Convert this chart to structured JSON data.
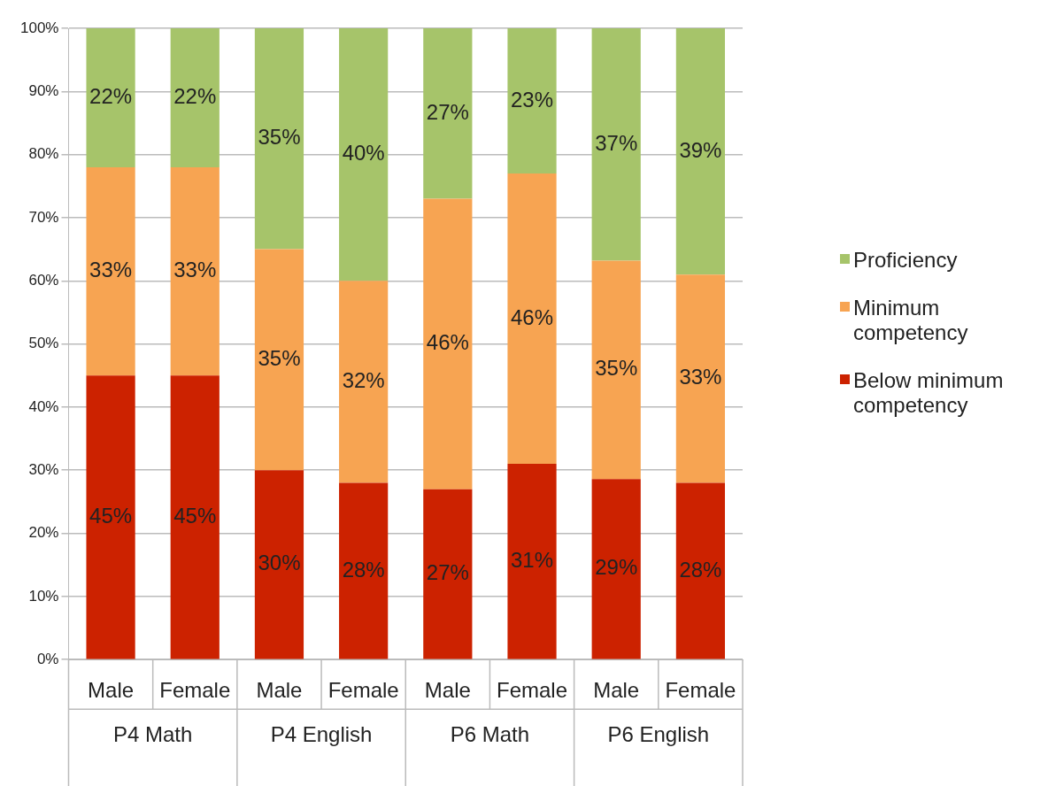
{
  "chart_data": {
    "type": "bar",
    "stacked": true,
    "categories": [
      "Male",
      "Female",
      "Male",
      "Female",
      "Male",
      "Female",
      "Male",
      "Female"
    ],
    "series": [
      {
        "name": "Below minimum competency",
        "color": "#cc2200",
        "values": [
          45,
          45,
          30,
          28,
          27,
          31,
          28.6,
          28
        ],
        "value_labels": [
          "45%",
          "45%",
          "30%",
          "28%",
          "27%",
          "31%",
          "29%",
          "28%"
        ]
      },
      {
        "name": "Minimum competency",
        "color": "#f7a452",
        "values": [
          33,
          33,
          35,
          32,
          46,
          46,
          34.6,
          33
        ],
        "value_labels": [
          "33%",
          "33%",
          "35%",
          "32%",
          "46%",
          "46%",
          "35%",
          "33%"
        ]
      },
      {
        "name": "Proficiency",
        "color": "#a6c46a",
        "values": [
          22,
          22,
          35,
          40,
          27,
          23,
          36.8,
          39
        ],
        "value_labels": [
          "22%",
          "22%",
          "35%",
          "40%",
          "27%",
          "23%",
          "37%",
          "39%"
        ]
      }
    ],
    "ylim": [
      0,
      100
    ],
    "yticks": [
      {
        "value": 0,
        "label": "0%"
      },
      {
        "value": 10,
        "label": "10%"
      },
      {
        "value": 20,
        "label": "20%"
      },
      {
        "value": 30,
        "label": "30%"
      },
      {
        "value": 40,
        "label": "40%"
      },
      {
        "value": 50,
        "label": "50%"
      },
      {
        "value": 60,
        "label": "60%"
      },
      {
        "value": 70,
        "label": "70%"
      },
      {
        "value": 80,
        "label": "80%"
      },
      {
        "value": 90,
        "label": "90%"
      },
      {
        "value": 100,
        "label": "100%"
      }
    ],
    "annotations": [
      "P4 Math",
      "P4 English",
      "P6 Math",
      "P6 English"
    ],
    "grid": "y",
    "legend": "right"
  }
}
